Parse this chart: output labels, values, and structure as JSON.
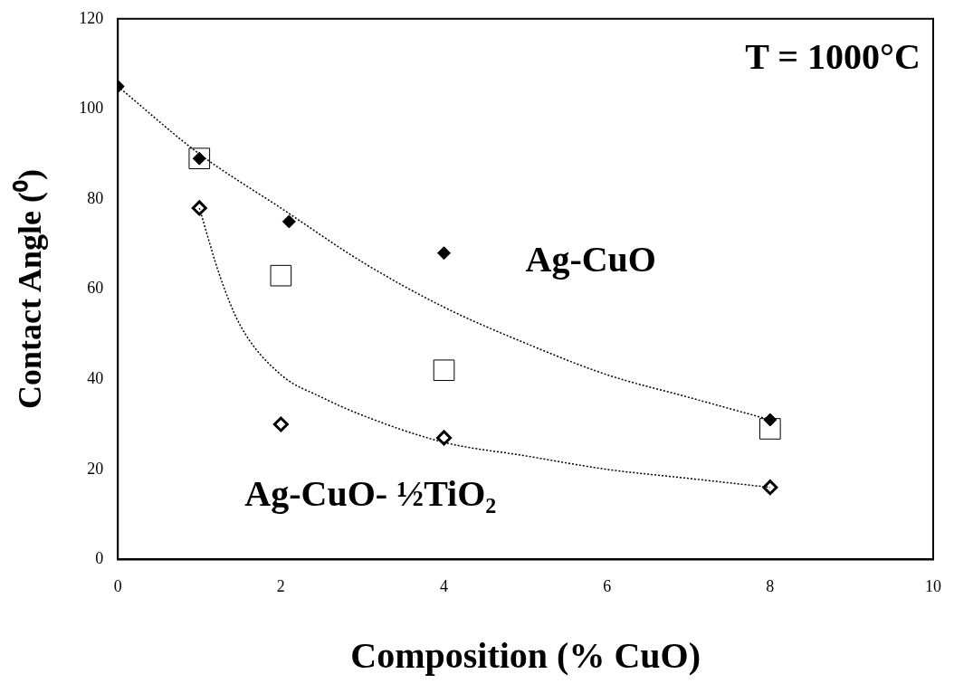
{
  "chart_data": {
    "type": "scatter",
    "xlabel": "Composition (% CuO)",
    "ylabel": "Contact Angle (⁰)",
    "xlim": [
      0,
      10
    ],
    "xticks": [
      0,
      2,
      4,
      6,
      8,
      10
    ],
    "ylim": [
      0,
      120
    ],
    "yticks": [
      0,
      20,
      40,
      60,
      80,
      100,
      120
    ],
    "grid": false,
    "legend": false,
    "annotations": [
      "T = 1000°C"
    ],
    "series": [
      {
        "name": "Ag-CuO",
        "marker": "diamond",
        "color": "#000000",
        "x": [
          0,
          1,
          2.1,
          4,
          8
        ],
        "values": [
          105,
          89,
          75,
          68,
          31
        ]
      },
      {
        "name": "Ag-CuO- ½TiO₂",
        "marker": "diamond",
        "color": "#000000",
        "x": [
          1,
          2,
          4,
          8
        ],
        "values": [
          78,
          30,
          27,
          16
        ]
      },
      {
        "marker": "square",
        "color": "#000000",
        "x": [
          1,
          2,
          4,
          8
        ],
        "values": [
          89,
          63,
          42,
          29
        ]
      },
      {
        "type": "line",
        "marker": "none",
        "line_style": "dotted",
        "color": "#000000",
        "x": [
          0,
          1,
          2,
          3,
          4,
          5,
          6,
          7,
          8
        ],
        "values": [
          105,
          90,
          78,
          66,
          56,
          48,
          41,
          36,
          31
        ]
      },
      {
        "type": "line",
        "marker": "none",
        "line_style": "dotted",
        "color": "#000000",
        "x": [
          1,
          1.25,
          1.5,
          2,
          2.5,
          3,
          4,
          5,
          6,
          7,
          8
        ],
        "values": [
          78,
          63,
          52,
          41,
          36,
          32,
          26,
          23,
          20,
          18,
          16
        ]
      }
    ]
  }
}
